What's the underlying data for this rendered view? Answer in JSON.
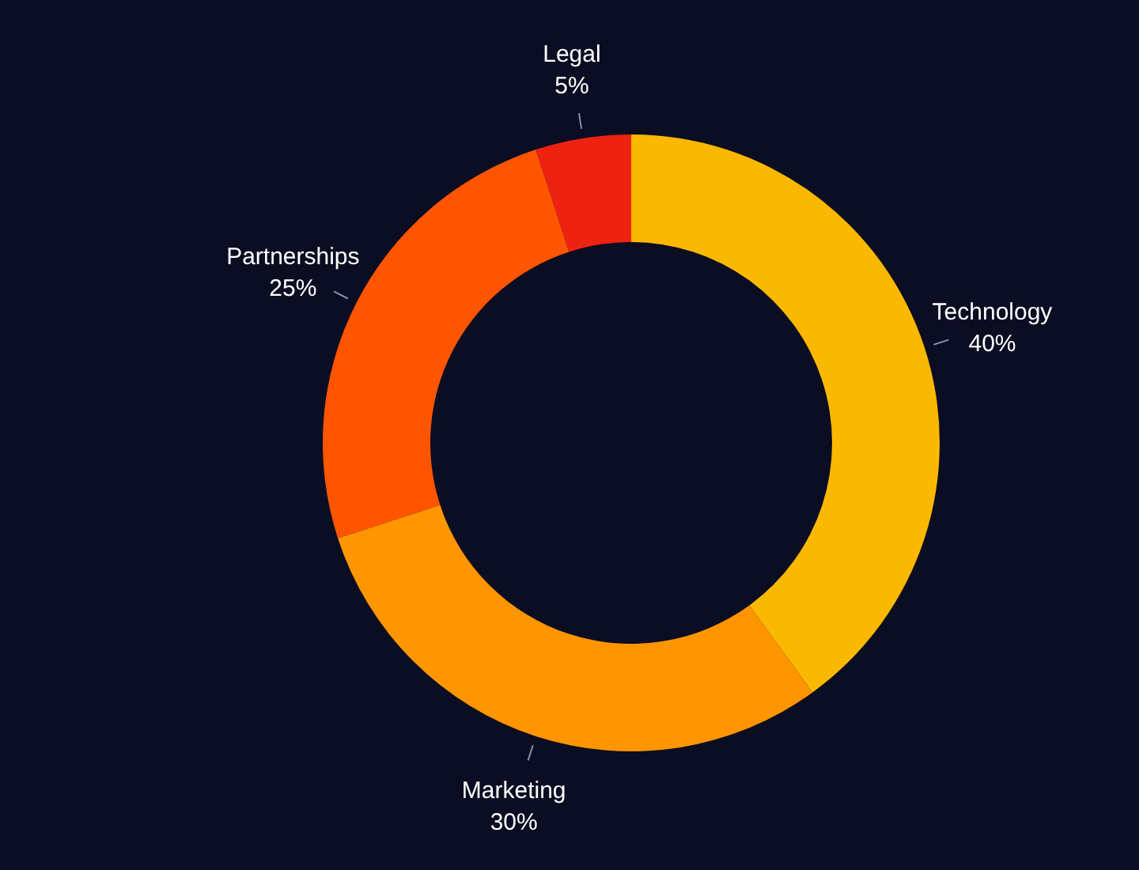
{
  "chart_data": {
    "type": "donut",
    "categories": [
      "Technology",
      "Marketing",
      "Partnerships",
      "Legal"
    ],
    "values": [
      40,
      30,
      25,
      5
    ],
    "value_labels": [
      "40%",
      "30%",
      "25%",
      "5%"
    ],
    "colors": [
      "#fbb800",
      "#ff9500",
      "#ff5500",
      "#ee2211"
    ]
  }
}
